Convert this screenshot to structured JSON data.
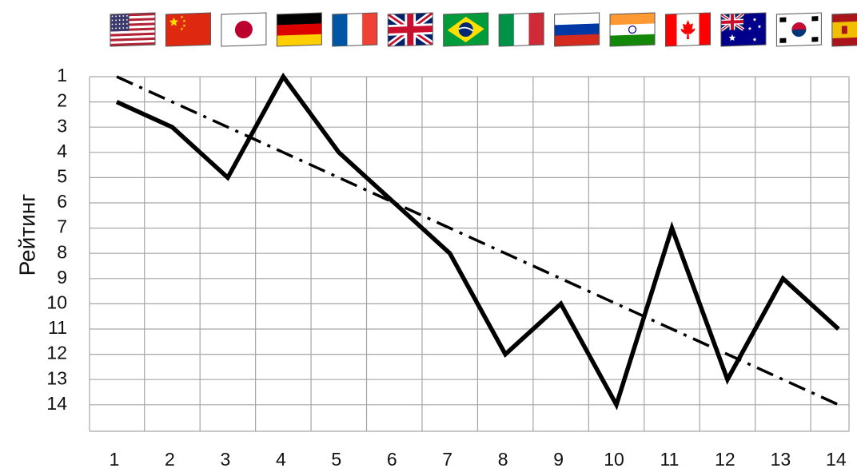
{
  "chart_data": {
    "type": "line",
    "ylabel": "Рейтинг",
    "x": [
      1,
      2,
      3,
      4,
      5,
      6,
      7,
      8,
      9,
      10,
      11,
      12,
      13,
      14
    ],
    "y_ticks": [
      1,
      2,
      3,
      4,
      5,
      6,
      7,
      8,
      9,
      10,
      11,
      12,
      13,
      14
    ],
    "ylim": [
      1,
      14
    ],
    "y_inverted": true,
    "grid": true,
    "series": [
      {
        "style": "solid",
        "values": [
          2,
          3,
          5,
          1,
          4,
          6,
          8,
          12,
          10,
          14,
          7,
          13,
          9,
          11
        ]
      },
      {
        "style": "dash-dot",
        "values": [
          1,
          2,
          3,
          4,
          5,
          6,
          7,
          8,
          9,
          10,
          11,
          12,
          13,
          14
        ]
      }
    ],
    "column_flags": [
      "us",
      "cn",
      "jp",
      "de",
      "fr",
      "gb",
      "br",
      "it",
      "ru",
      "in",
      "ca",
      "au",
      "kr",
      "es"
    ]
  },
  "colors": {
    "grid": "#a6a6a6",
    "line": "#000000"
  }
}
